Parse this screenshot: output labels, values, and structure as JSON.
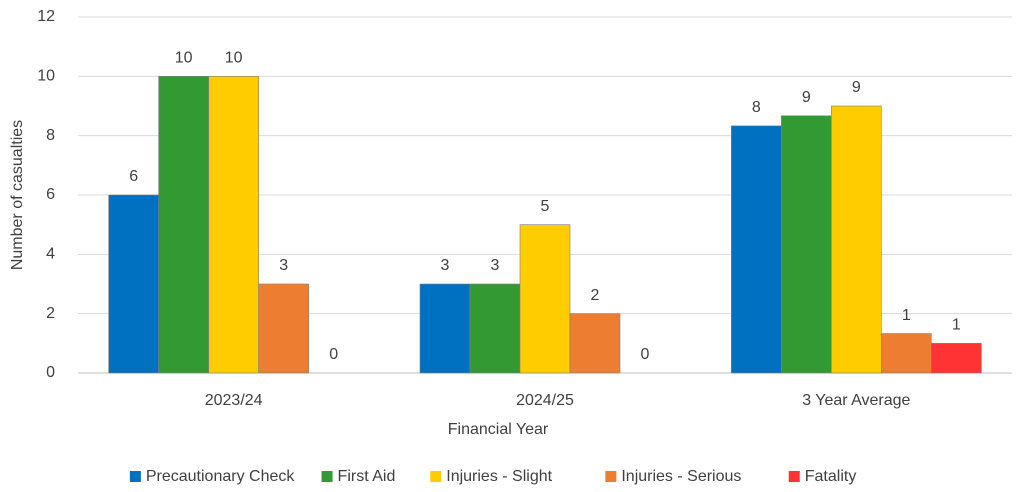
{
  "chart_data": {
    "type": "bar",
    "x_label": "Financial Year",
    "y_label": "Number of casualties",
    "categories": [
      "2023/24",
      "2024/25",
      "3 Year Average"
    ],
    "series": [
      {
        "name": "Precautionary Check",
        "color": "#0070c0",
        "values": [
          6,
          3,
          8.33
        ],
        "value_labels": [
          "6",
          "3",
          "8"
        ]
      },
      {
        "name": "First Aid",
        "color": "#339933",
        "values": [
          10,
          3,
          8.67
        ],
        "value_labels": [
          "10",
          "3",
          "9"
        ]
      },
      {
        "name": "Injuries - Slight",
        "color": "#ffcc00",
        "values": [
          10,
          5,
          9
        ],
        "value_labels": [
          "10",
          "5",
          "9"
        ]
      },
      {
        "name": "Injuries - Serious",
        "color": "#ed7d31",
        "values": [
          3,
          2,
          1.33
        ],
        "value_labels": [
          "3",
          "2",
          "1"
        ]
      },
      {
        "name": "Fatality",
        "color": "#ff3333",
        "values": [
          0,
          0,
          1
        ],
        "value_labels": [
          "0",
          "0",
          "1"
        ]
      }
    ],
    "ylim": [
      0,
      12
    ],
    "yticks": [
      0,
      2,
      4,
      6,
      8,
      10,
      12
    ],
    "grid": true,
    "legend": "bottom"
  }
}
